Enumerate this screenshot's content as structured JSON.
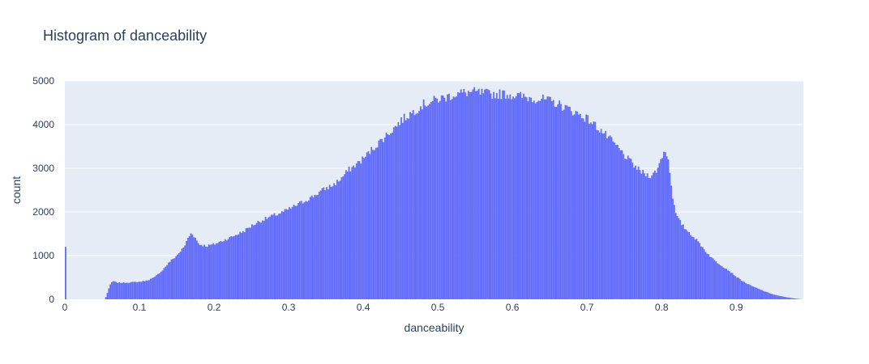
{
  "chart_data": {
    "type": "bar",
    "title": "Histogram of danceability",
    "xlabel": "danceability",
    "ylabel": "count",
    "xlim": [
      0,
      0.99
    ],
    "ylim": [
      0,
      5000
    ],
    "bin_width": 0.002,
    "bar_color": "#636efa",
    "plot_bg": "#e5ecf6",
    "grid": true,
    "legend": "none",
    "x_ticks": [
      0,
      0.1,
      0.2,
      0.3,
      0.4,
      0.5,
      0.6,
      0.7,
      0.8,
      0.9
    ],
    "x_tick_labels": [
      "0",
      "0.1",
      "0.2",
      "0.3",
      "0.4",
      "0.5",
      "0.6",
      "0.7",
      "0.8",
      "0.9"
    ],
    "y_ticks": [
      0,
      1000,
      2000,
      3000,
      4000,
      5000
    ],
    "y_tick_labels": [
      "0",
      "1000",
      "2000",
      "3000",
      "4000",
      "5000"
    ],
    "profile": [
      [
        0.0,
        1200
      ],
      [
        0.002,
        0
      ],
      [
        0.054,
        0
      ],
      [
        0.056,
        100
      ],
      [
        0.06,
        300
      ],
      [
        0.064,
        420
      ],
      [
        0.07,
        380
      ],
      [
        0.08,
        380
      ],
      [
        0.09,
        390
      ],
      [
        0.1,
        400
      ],
      [
        0.11,
        430
      ],
      [
        0.12,
        500
      ],
      [
        0.13,
        650
      ],
      [
        0.14,
        850
      ],
      [
        0.15,
        1000
      ],
      [
        0.16,
        1200
      ],
      [
        0.165,
        1400
      ],
      [
        0.17,
        1530
      ],
      [
        0.175,
        1400
      ],
      [
        0.18,
        1260
      ],
      [
        0.19,
        1220
      ],
      [
        0.2,
        1260
      ],
      [
        0.21,
        1330
      ],
      [
        0.22,
        1400
      ],
      [
        0.23,
        1480
      ],
      [
        0.24,
        1560
      ],
      [
        0.25,
        1680
      ],
      [
        0.26,
        1780
      ],
      [
        0.27,
        1850
      ],
      [
        0.28,
        1920
      ],
      [
        0.29,
        1980
      ],
      [
        0.3,
        2060
      ],
      [
        0.31,
        2150
      ],
      [
        0.32,
        2240
      ],
      [
        0.33,
        2330
      ],
      [
        0.34,
        2440
      ],
      [
        0.35,
        2540
      ],
      [
        0.36,
        2620
      ],
      [
        0.37,
        2760
      ],
      [
        0.38,
        2950
      ],
      [
        0.39,
        3080
      ],
      [
        0.4,
        3220
      ],
      [
        0.41,
        3400
      ],
      [
        0.42,
        3570
      ],
      [
        0.43,
        3740
      ],
      [
        0.44,
        3900
      ],
      [
        0.45,
        4080
      ],
      [
        0.46,
        4210
      ],
      [
        0.47,
        4330
      ],
      [
        0.48,
        4460
      ],
      [
        0.49,
        4520
      ],
      [
        0.5,
        4580
      ],
      [
        0.51,
        4620
      ],
      [
        0.52,
        4680
      ],
      [
        0.53,
        4720
      ],
      [
        0.54,
        4740
      ],
      [
        0.55,
        4740
      ],
      [
        0.56,
        4720
      ],
      [
        0.57,
        4700
      ],
      [
        0.58,
        4700
      ],
      [
        0.59,
        4700
      ],
      [
        0.6,
        4680
      ],
      [
        0.61,
        4650
      ],
      [
        0.62,
        4620
      ],
      [
        0.63,
        4600
      ],
      [
        0.64,
        4580
      ],
      [
        0.65,
        4540
      ],
      [
        0.66,
        4480
      ],
      [
        0.67,
        4400
      ],
      [
        0.68,
        4320
      ],
      [
        0.69,
        4230
      ],
      [
        0.7,
        4140
      ],
      [
        0.71,
        4000
      ],
      [
        0.72,
        3850
      ],
      [
        0.73,
        3680
      ],
      [
        0.74,
        3500
      ],
      [
        0.75,
        3300
      ],
      [
        0.76,
        3120
      ],
      [
        0.77,
        2950
      ],
      [
        0.78,
        2850
      ],
      [
        0.785,
        2840
      ],
      [
        0.79,
        2880
      ],
      [
        0.795,
        3000
      ],
      [
        0.8,
        3250
      ],
      [
        0.804,
        3420
      ],
      [
        0.808,
        3300
      ],
      [
        0.812,
        2800
      ],
      [
        0.816,
        2200
      ],
      [
        0.82,
        1900
      ],
      [
        0.83,
        1650
      ],
      [
        0.84,
        1480
      ],
      [
        0.85,
        1300
      ],
      [
        0.86,
        1080
      ],
      [
        0.87,
        900
      ],
      [
        0.88,
        780
      ],
      [
        0.89,
        660
      ],
      [
        0.9,
        520
      ],
      [
        0.91,
        400
      ],
      [
        0.92,
        310
      ],
      [
        0.93,
        240
      ],
      [
        0.94,
        170
      ],
      [
        0.95,
        110
      ],
      [
        0.96,
        70
      ],
      [
        0.97,
        40
      ],
      [
        0.98,
        15
      ],
      [
        0.988,
        0
      ]
    ]
  }
}
